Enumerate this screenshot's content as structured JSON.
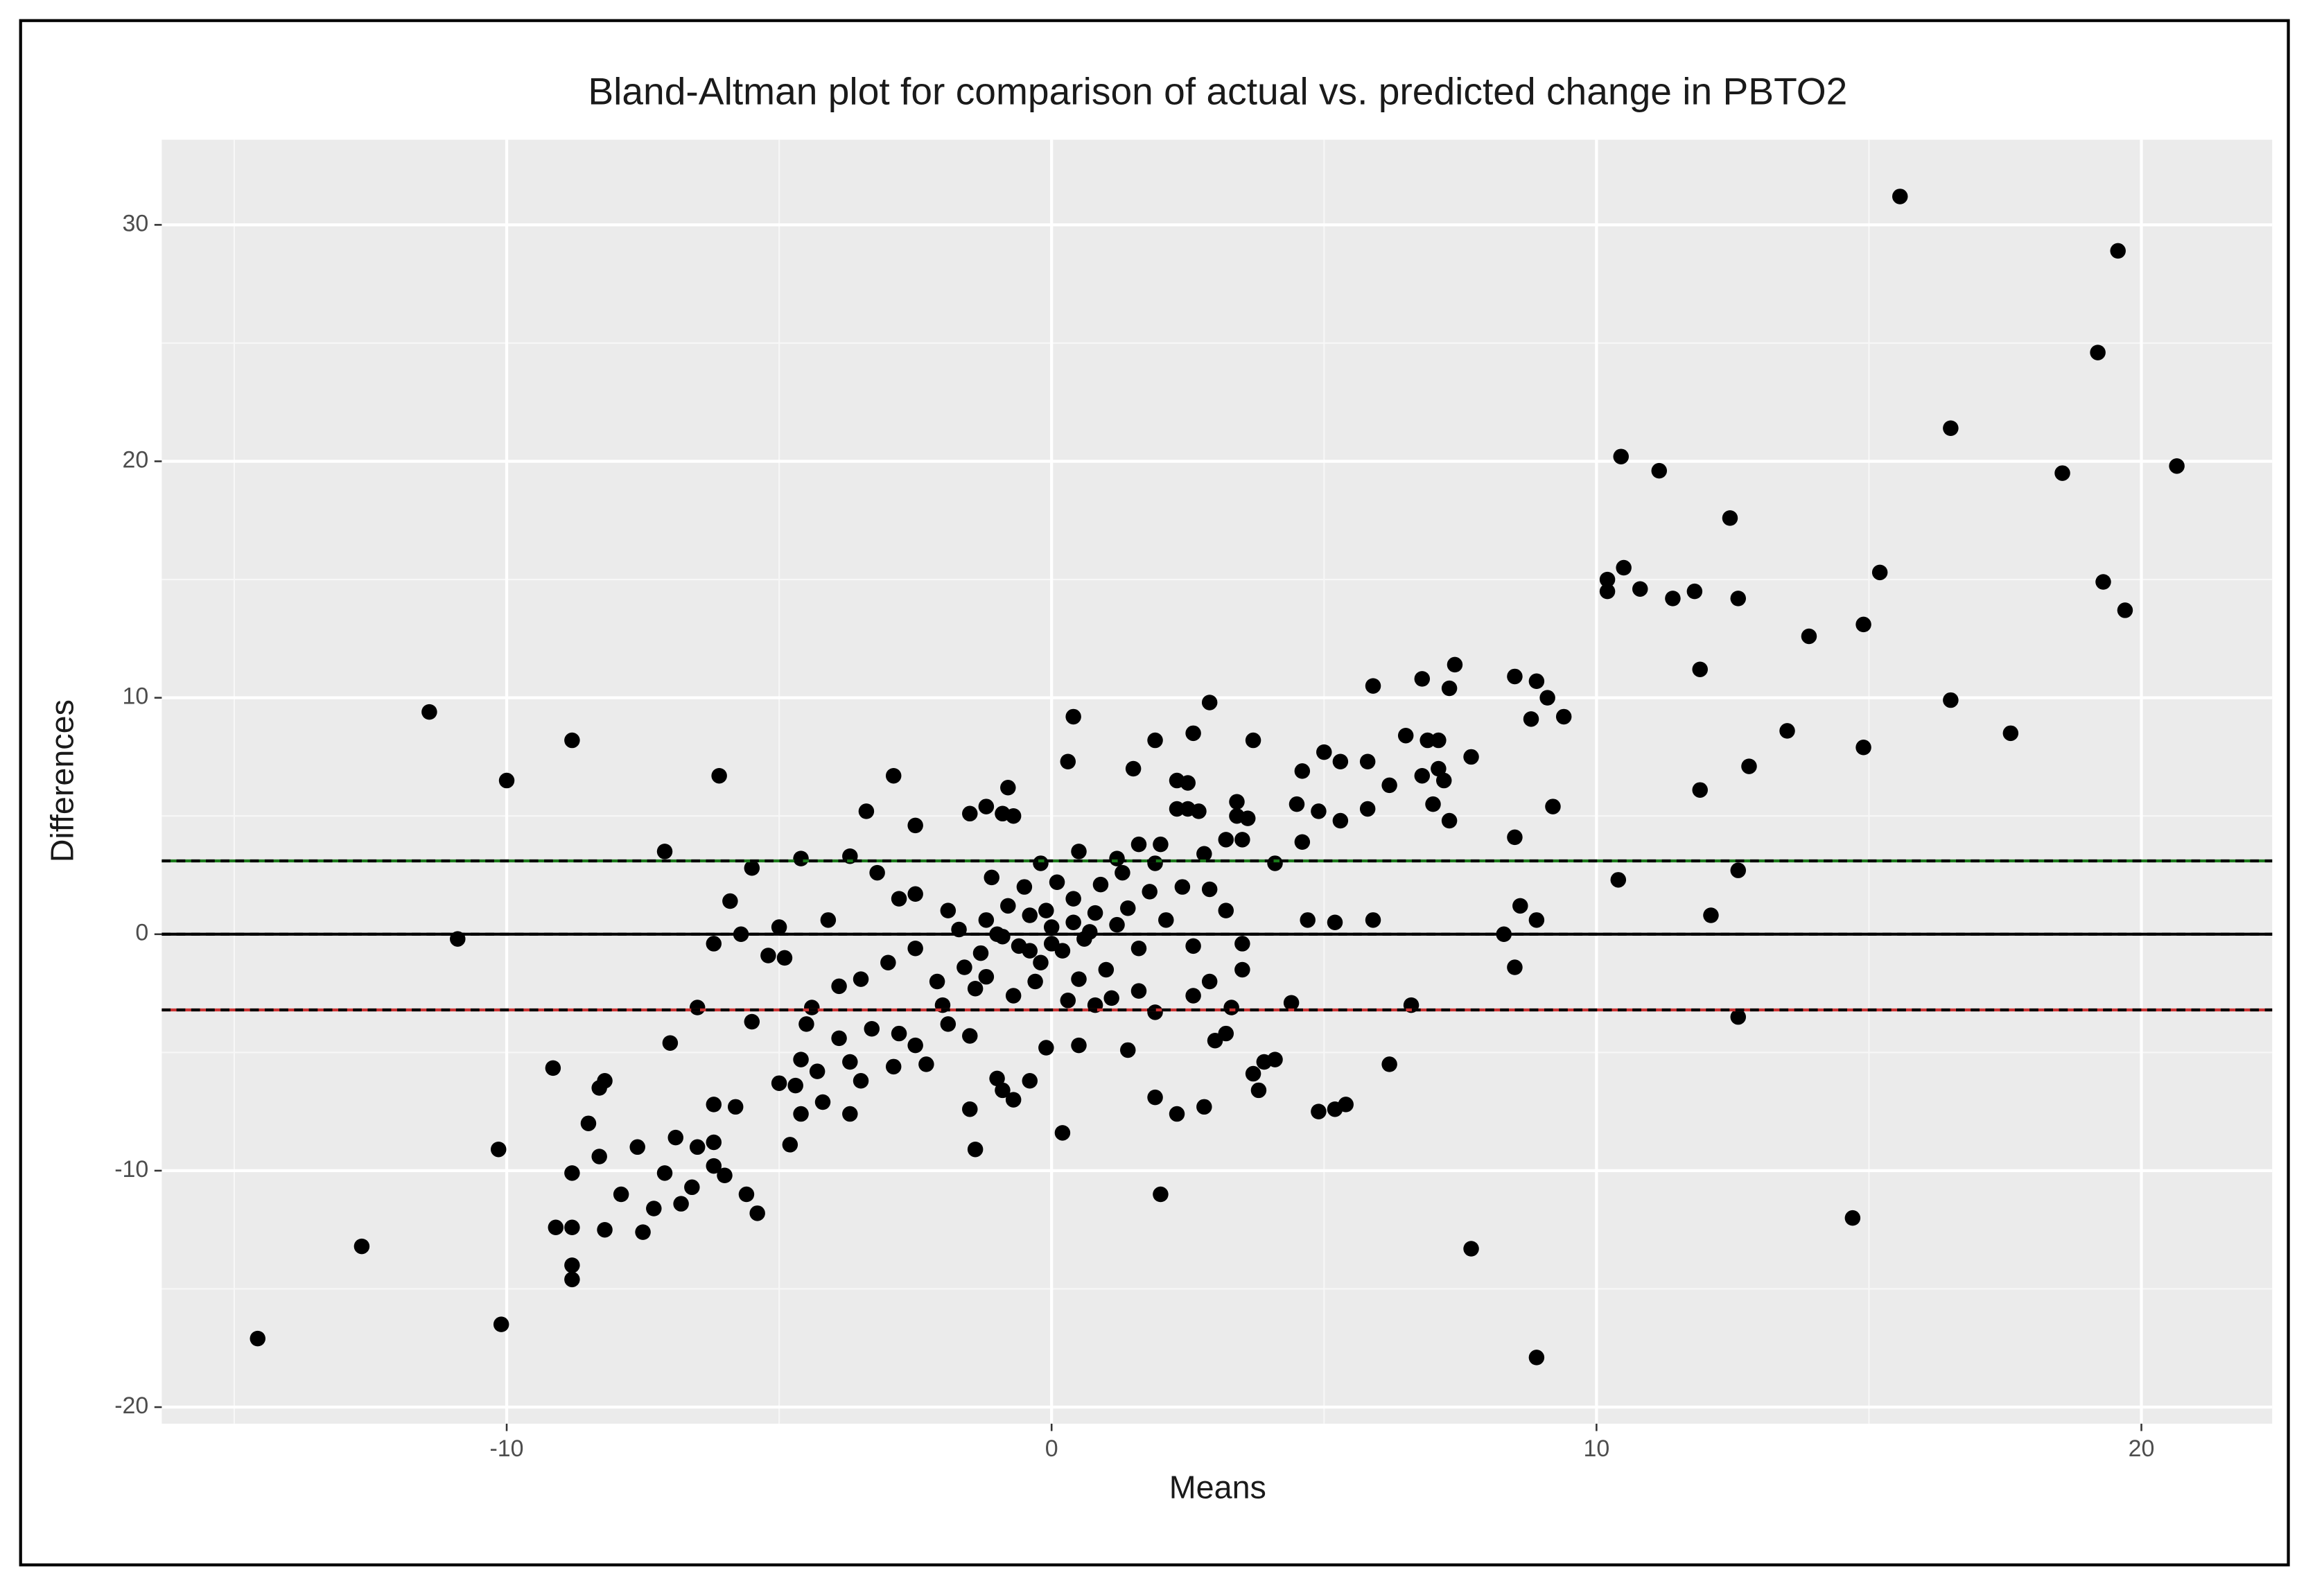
{
  "chart_data": {
    "type": "scatter",
    "title": "Bland-Altman plot for comparison of actual vs. predicted change in PBTO2",
    "x_label": "Means",
    "y_label": "Differences",
    "color": "#000000",
    "xlim": [
      -16.33,
      22.4
    ],
    "ylim": [
      -20.7,
      33.6
    ],
    "xticks": [
      -10,
      0,
      10,
      20
    ],
    "yticks": [
      -20,
      -10,
      0,
      10,
      20,
      30
    ],
    "xminor": [
      -15,
      -5,
      5,
      15
    ],
    "yminor": [
      -15,
      -5,
      5,
      15,
      25
    ],
    "grid": true,
    "hlines": [
      {
        "value": 3.1,
        "color": "#1a7a1a"
      },
      {
        "value": 0,
        "color": "#000000"
      },
      {
        "value": -3.2,
        "color": "#cc3333"
      }
    ],
    "x": [
      -14.57,
      -12.66,
      -11.42,
      -10.9,
      -10.0,
      -10.15,
      -10.1,
      -8.8,
      -9.15,
      -9.1,
      -8.8,
      -8.8,
      -8.8,
      -8.8,
      -8.5,
      -8.3,
      -8.2,
      -8.3,
      -8.2,
      -7.9,
      -7.6,
      -7.5,
      -7.3,
      -7.1,
      -7.1,
      -7.0,
      -6.9,
      -6.8,
      -6.6,
      -6.5,
      -6.5,
      -6.2,
      -6.2,
      -6.2,
      -6.2,
      -6.1,
      -6.0,
      -5.9,
      -5.8,
      -5.7,
      -5.6,
      -5.5,
      -5.5,
      -5.4,
      -5.2,
      -5.0,
      -4.9,
      -4.8,
      -4.7,
      -4.6,
      15.57,
      19.57,
      19.2,
      16.5,
      18.55,
      20.65,
      10.45,
      11.15,
      12.45,
      10.2,
      10.2,
      10.5,
      10.8,
      11.4,
      11.8,
      12.6,
      15.2,
      14.9,
      13.9,
      19.3,
      19.7,
      11.9,
      16.5,
      17.6,
      13.5,
      14.9,
      12.8,
      11.9,
      10.4,
      12.6,
      12.1,
      12.6,
      14.7,
      8.9,
      7.7,
      8.5,
      8.9,
      9.1,
      9.4,
      8.8,
      9.2,
      8.5,
      8.6,
      8.9,
      8.3,
      8.5,
      7.4,
      7.3,
      6.8,
      5.9,
      7.7,
      6.5,
      6.9,
      7.1,
      7.1,
      6.8,
      7.2,
      7.0,
      7.3,
      6.2,
      5.3,
      5.0,
      5.8,
      4.6,
      4.5,
      4.9,
      5.3,
      5.8,
      4.6,
      5.9,
      4.7,
      5.2,
      6.6,
      6.2,
      4.4,
      5.4,
      5.2,
      4.9,
      3.9,
      3.8,
      3.7,
      3.3,
      3.2,
      4.1,
      3.0,
      2.8,
      2.3,
      1.9,
      2.0,
      0.2,
      -1.4,
      -1.5,
      -0.9,
      -0.7,
      -1.0,
      -0.4,
      -0.1,
      0.5,
      1.4,
      2.9,
      2.6,
      1.9,
      3.7,
      0.4,
      0.3,
      1.5,
      2.3,
      2.5,
      3.4,
      3.4,
      2.5,
      2.3,
      2.7,
      3.6,
      4.1,
      3.2,
      3.5,
      2.8,
      2.0,
      1.6,
      1.9,
      2.4,
      2.9,
      3.2,
      2.1,
      2.6,
      3.5,
      3.5,
      2.9,
      2.6,
      1.9,
      1.6,
      -0.8,
      -0.9,
      -0.7,
      -1.5,
      -1.2,
      -2.9,
      -3.4,
      -2.5,
      -3.7,
      -4.6,
      -2.8,
      -2.5,
      -1.9,
      -3.2,
      -4.1,
      -2.5,
      -3.0,
      -3.5,
      -3.9,
      -4.4,
      -4.5,
      -3.9,
      -4.3,
      -4.6,
      -3.7,
      -3.5,
      -3.7,
      -4.2,
      -5.0,
      -2.9,
      -2.3,
      -2.5,
      -2.8,
      -3.3,
      -1.9,
      -1.5,
      -2.0,
      -1.4,
      -2.1,
      -1.6,
      -1.2,
      -1.0,
      -0.8,
      -0.6,
      -0.4,
      -0.2,
      0.0,
      0.2,
      0.4,
      0.6,
      0.8,
      1.0,
      1.2,
      -1.2,
      -0.5,
      0.1,
      0.5,
      -0.3,
      0.9,
      1.4,
      -1.3,
      -0.7,
      0.3,
      1.1,
      -0.1,
      0.7,
      -0.9,
      1.6,
      -1.7,
      1.8,
      0.0,
      -0.4,
      0.4,
      1.3,
      -1.1,
      0.8,
      -0.2,
      0.5,
      1.2
    ],
    "values": [
      -17.1,
      -13.2,
      9.4,
      -0.2,
      6.5,
      -9.1,
      -16.5,
      8.2,
      -5.66,
      -12.4,
      -14.0,
      -14.6,
      -12.4,
      -10.1,
      -8.0,
      -6.5,
      -6.2,
      -9.4,
      -12.5,
      -11.0,
      -9.0,
      -12.6,
      -11.6,
      -10.1,
      3.5,
      -4.6,
      -8.6,
      -11.4,
      -10.7,
      -9.0,
      -3.1,
      -0.4,
      -7.2,
      -8.8,
      -9.8,
      6.7,
      -10.2,
      1.4,
      -7.3,
      0.0,
      -11.0,
      -3.7,
      2.8,
      -11.8,
      -0.9,
      0.3,
      -1.0,
      -8.9,
      -6.4,
      -7.6,
      31.2,
      28.9,
      24.6,
      21.4,
      19.5,
      19.8,
      20.2,
      19.6,
      17.6,
      15.0,
      14.5,
      15.5,
      14.6,
      14.2,
      14.5,
      14.2,
      15.3,
      13.1,
      12.6,
      14.9,
      13.7,
      11.2,
      9.9,
      8.5,
      8.6,
      7.9,
      7.1,
      6.1,
      2.3,
      2.7,
      0.8,
      -3.5,
      -12.0,
      -17.9,
      -13.3,
      10.9,
      10.7,
      10.0,
      9.2,
      9.1,
      5.4,
      4.1,
      1.2,
      0.6,
      0.0,
      -1.4,
      11.4,
      10.4,
      10.8,
      10.5,
      7.5,
      8.4,
      8.2,
      8.2,
      7.0,
      6.7,
      6.5,
      5.5,
      4.8,
      6.3,
      7.3,
      7.7,
      7.3,
      6.9,
      5.5,
      5.2,
      4.8,
      5.3,
      3.9,
      0.6,
      0.6,
      0.5,
      -3.0,
      -5.5,
      -2.9,
      -7.2,
      -7.4,
      -7.5,
      -5.4,
      -6.6,
      -5.9,
      -3.1,
      -4.2,
      -5.3,
      -4.5,
      -7.3,
      -7.6,
      -6.9,
      -11.0,
      -8.4,
      -9.1,
      -7.4,
      -6.6,
      -7.0,
      -6.1,
      -6.2,
      -4.8,
      -4.7,
      -4.9,
      9.8,
      8.5,
      8.2,
      8.2,
      9.2,
      7.3,
      7.0,
      6.5,
      6.4,
      5.6,
      5.0,
      5.3,
      5.3,
      5.2,
      4.9,
      3.0,
      4.0,
      4.0,
      3.4,
      3.8,
      3.8,
      3.0,
      2.0,
      1.9,
      1.0,
      0.6,
      -0.5,
      -1.5,
      -0.4,
      -2.0,
      -2.6,
      -3.3,
      -2.4,
      6.2,
      5.1,
      5.0,
      5.1,
      5.4,
      6.7,
      5.2,
      4.6,
      3.3,
      3.2,
      1.5,
      1.7,
      1.0,
      2.6,
      0.6,
      -0.6,
      -1.2,
      -1.9,
      -2.2,
      -3.1,
      -3.8,
      -4.4,
      -5.8,
      -5.3,
      -5.4,
      -6.2,
      -7.6,
      -7.1,
      -6.3,
      -5.6,
      -5.5,
      -4.7,
      -4.2,
      -4.0,
      -3.8,
      -4.3,
      -3.0,
      -2.3,
      -2.0,
      -1.4,
      -1.8,
      0.0,
      1.2,
      -0.5,
      0.8,
      -1.2,
      0.3,
      -0.7,
      1.5,
      -0.2,
      0.9,
      -1.5,
      0.4,
      0.6,
      2.0,
      2.2,
      -1.9,
      -2.0,
      2.1,
      1.1,
      -0.8,
      -2.6,
      -2.8,
      -2.7,
      1.0,
      0.1,
      -0.1,
      -0.6,
      0.2,
      1.8,
      -0.4,
      -0.7,
      0.5,
      2.6,
      2.4,
      -3.0,
      3.0,
      3.5,
      3.2
    ]
  }
}
